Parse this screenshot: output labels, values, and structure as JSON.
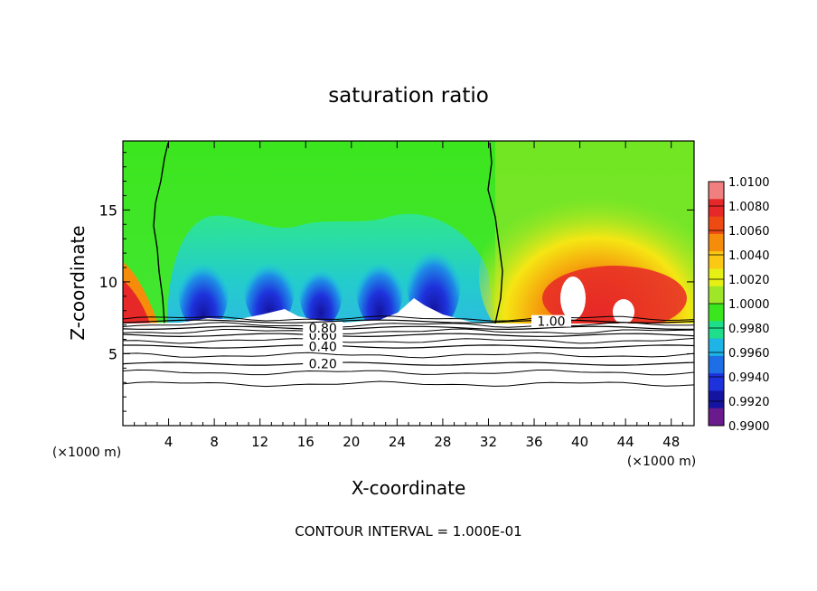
{
  "chart_data": {
    "type": "heatmap",
    "title": "saturation ratio",
    "xlabel": "X-coordinate",
    "ylabel": "Z-coordinate",
    "x_unit_left": "(×1000 m)",
    "x_unit_right": "(×1000 m)",
    "xlim": [
      0,
      50
    ],
    "ylim": [
      0,
      19.8
    ],
    "x_ticks": [
      4,
      8,
      12,
      16,
      20,
      24,
      28,
      32,
      36,
      40,
      44,
      48
    ],
    "y_ticks": [
      5,
      10,
      15
    ],
    "footer": "CONTOUR INTERVAL = 1.000E-01",
    "colorbar": {
      "levels": [
        "1.0100",
        "1.0080",
        "1.0060",
        "1.0040",
        "1.0020",
        "1.0000",
        "0.9980",
        "0.9960",
        "0.9940",
        "0.9920",
        "0.9900"
      ],
      "colors": [
        "#f08080",
        "#e62828",
        "#ee4a14",
        "#f58c0a",
        "#fbc814",
        "#e6f014",
        "#a0e628",
        "#3ce61e",
        "#1ede8c",
        "#1eb4e6",
        "#1e6ee6",
        "#1e32dc",
        "#1414a0",
        "#6a1a8c"
      ],
      "top_color": "#f09090"
    },
    "contour_lines": [
      {
        "label": "0.20",
        "z": 4.3
      },
      {
        "label": "0.40",
        "z": 5.5
      },
      {
        "label": "0.60",
        "z": 6.3
      },
      {
        "label": "0.80",
        "z": 6.8
      },
      {
        "label": "1.00",
        "z": 7.25
      }
    ]
  }
}
